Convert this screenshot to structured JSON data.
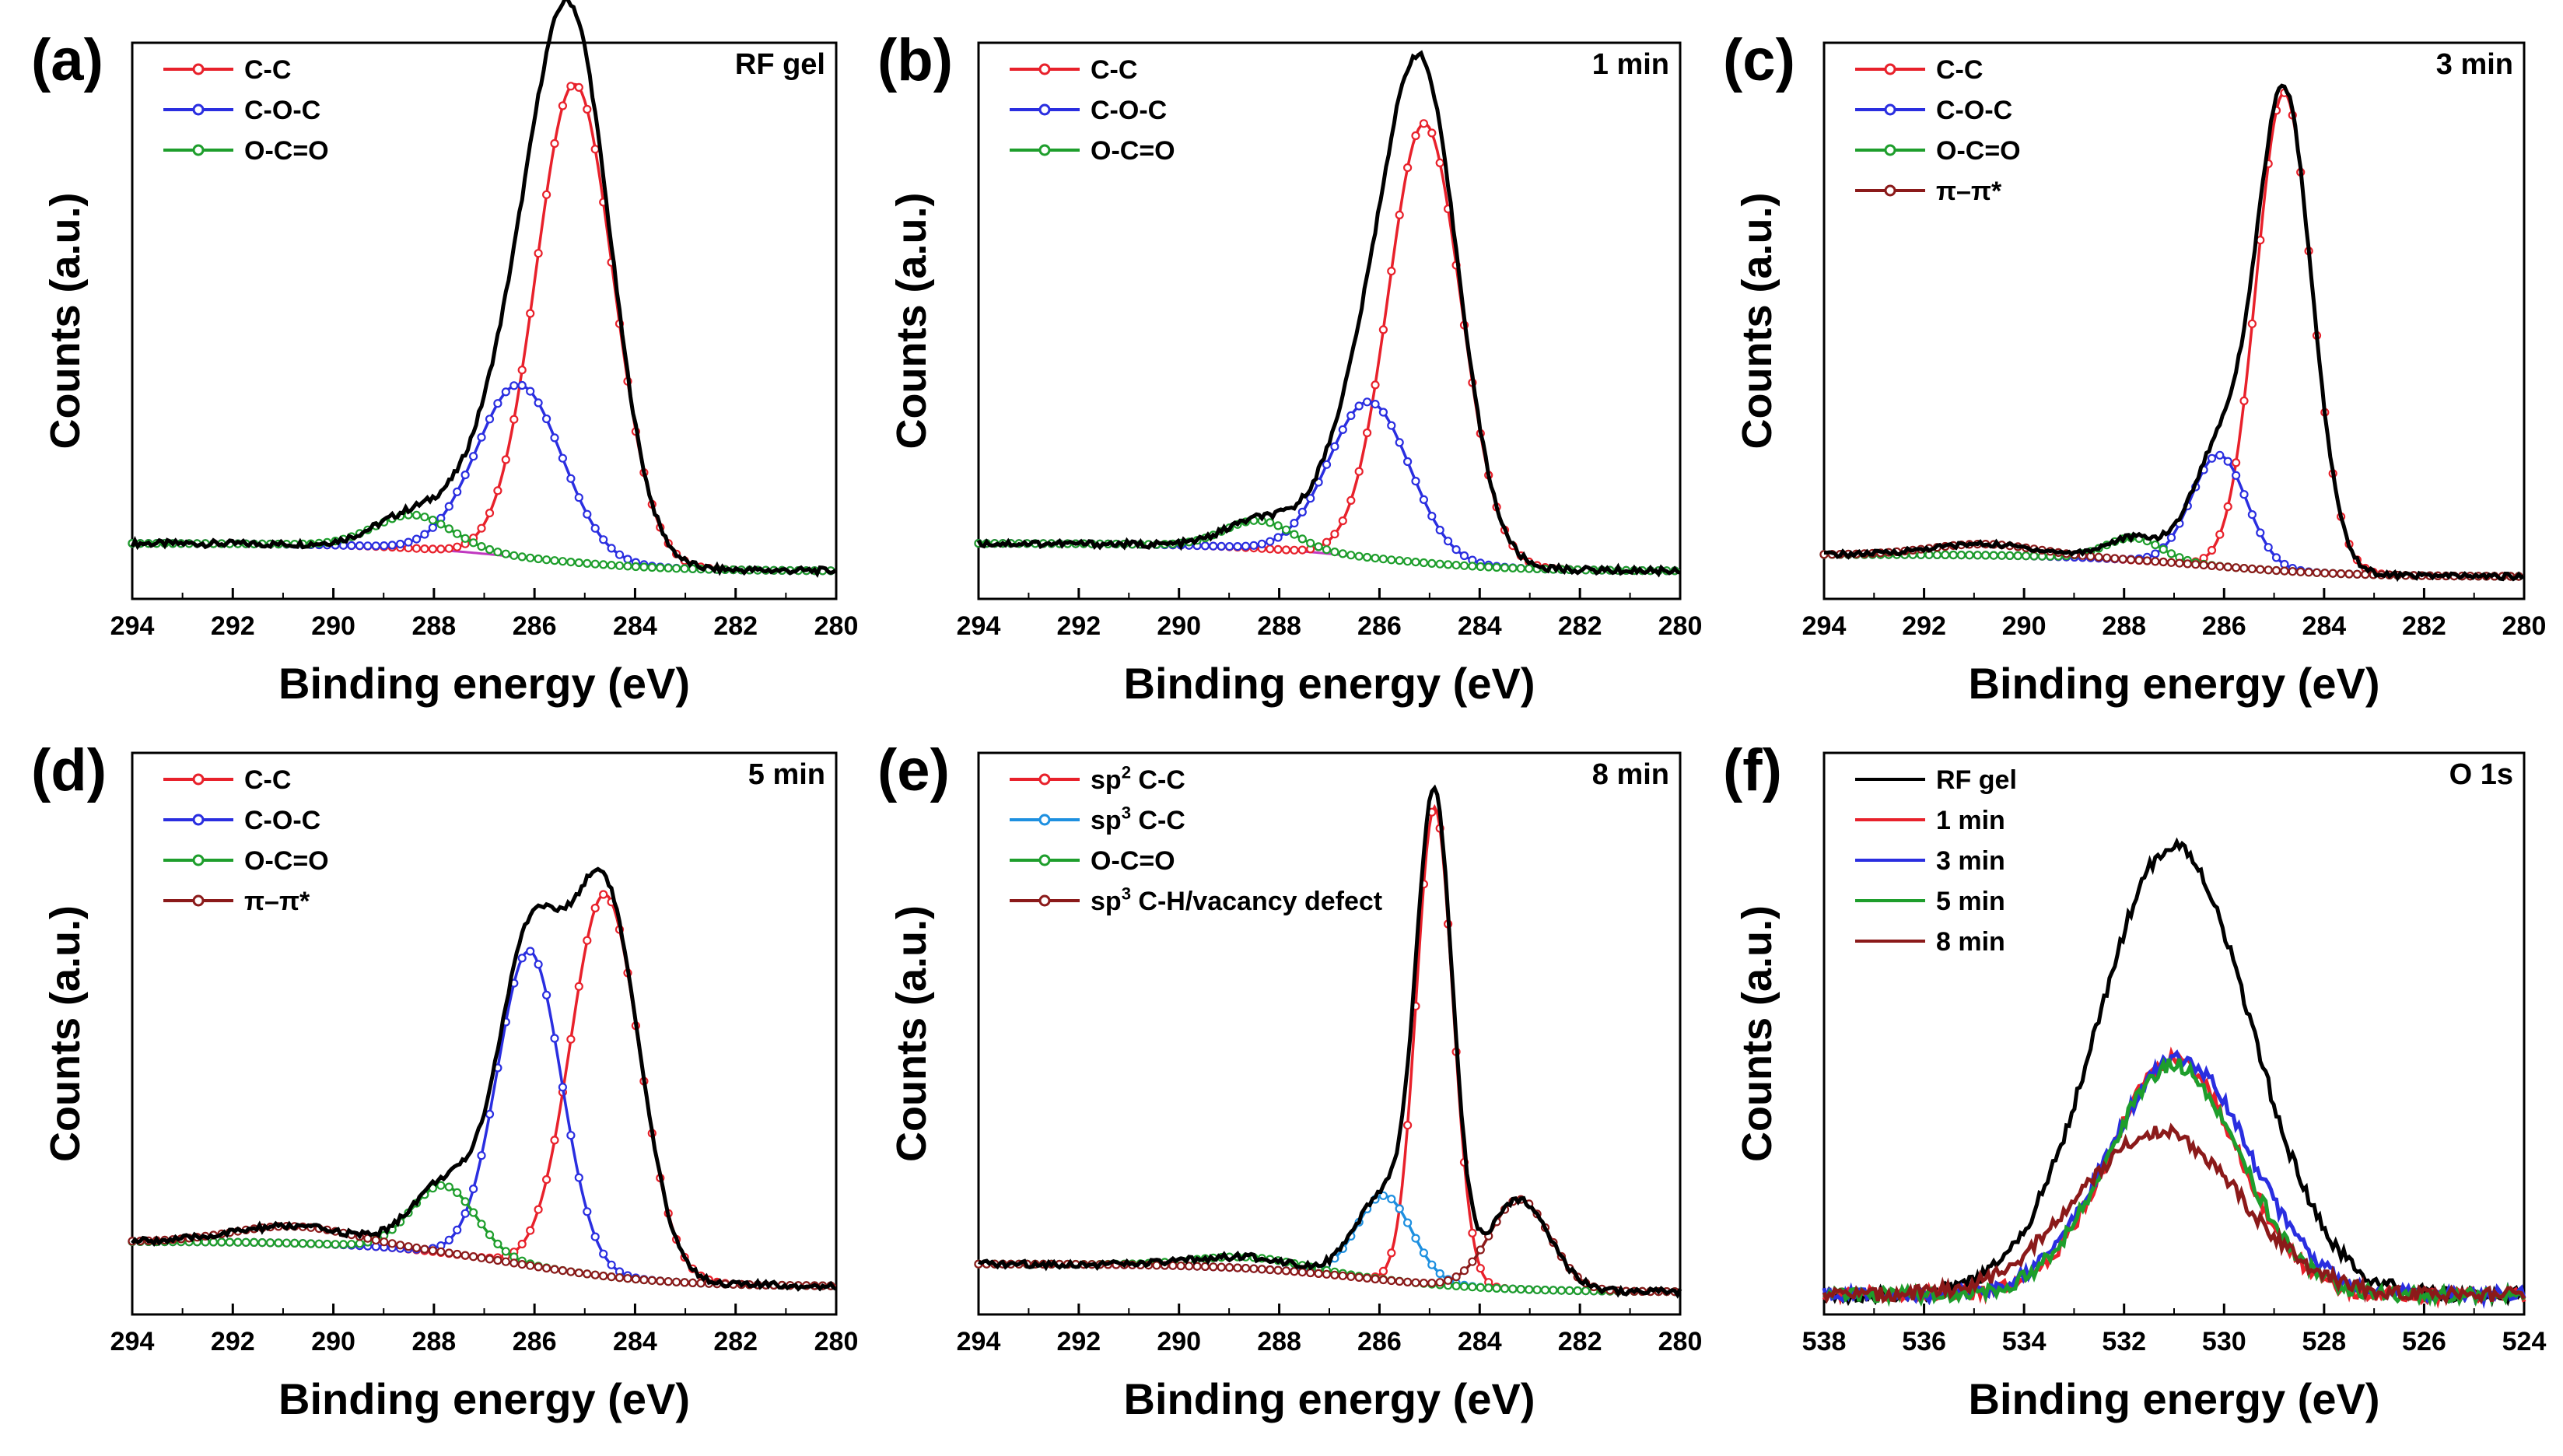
{
  "figure_title": "XPS spectra panels",
  "colors": {
    "envelope": "#000000",
    "cc": "#e8212b",
    "coc": "#2a2ee0",
    "occo": "#1e9e2c",
    "pipi": "#8b1a1a",
    "sp3": "#1e90e0",
    "baseline": "#c038c0"
  },
  "chart_data": [
    {
      "panel": "(a)",
      "type": "line",
      "title": "RF gel",
      "xlabel": "Binding energy (eV)",
      "ylabel": "Counts (a.u.)",
      "xlim": [
        294,
        280
      ],
      "xticks": [
        "294",
        "292",
        "290",
        "288",
        "286",
        "284",
        "282",
        "280"
      ],
      "legend": [
        "C-C",
        "C-O-C",
        "O-C=O"
      ],
      "legend_position": "top-left",
      "baseline": {
        "start": 0.07,
        "end": 0.02
      },
      "envelope_noise": 0.006,
      "series": [
        {
          "name": "C-C",
          "center": 285.2,
          "fwhm": 1.8,
          "height": 0.86,
          "color_key": "cc"
        },
        {
          "name": "C-O-C",
          "center": 286.3,
          "fwhm": 2.0,
          "height": 0.31,
          "color_key": "coc"
        },
        {
          "name": "O-C=O",
          "center": 288.4,
          "fwhm": 1.8,
          "height": 0.06,
          "color_key": "occo"
        }
      ]
    },
    {
      "panel": "(b)",
      "type": "line",
      "title": "1 min",
      "xlabel": "Binding energy (eV)",
      "ylabel": "Counts (a.u.)",
      "xlim": [
        294,
        280
      ],
      "xticks": [
        "294",
        "292",
        "290",
        "288",
        "286",
        "284",
        "282",
        "280"
      ],
      "legend": [
        "C-C",
        "C-O-C",
        "O-C=O"
      ],
      "legend_position": "top-left",
      "baseline": {
        "start": 0.07,
        "end": 0.02
      },
      "envelope_noise": 0.006,
      "series": [
        {
          "name": "C-C",
          "center": 285.1,
          "fwhm": 1.7,
          "height": 0.79,
          "color_key": "cc"
        },
        {
          "name": "C-O-C",
          "center": 286.2,
          "fwhm": 1.9,
          "height": 0.28,
          "color_key": "coc"
        },
        {
          "name": "O-C=O",
          "center": 288.4,
          "fwhm": 1.6,
          "height": 0.05,
          "color_key": "occo"
        }
      ]
    },
    {
      "panel": "(c)",
      "type": "line",
      "title": "3 min",
      "xlabel": "Binding energy (eV)",
      "ylabel": "Counts (a.u.)",
      "xlim": [
        294,
        280
      ],
      "xticks": [
        "294",
        "292",
        "290",
        "288",
        "286",
        "284",
        "282",
        "280"
      ],
      "legend": [
        "C-C",
        "C-O-C",
        "O-C=O",
        "π–π*"
      ],
      "legend_position": "top-left",
      "baseline": {
        "start": 0.05,
        "end": 0.01
      },
      "envelope_noise": 0.005,
      "series": [
        {
          "name": "C-C",
          "center": 284.8,
          "fwhm": 1.3,
          "height": 0.86,
          "color_key": "cc"
        },
        {
          "name": "C-O-C",
          "center": 286.1,
          "fwhm": 1.3,
          "height": 0.2,
          "color_key": "coc"
        },
        {
          "name": "O-C=O",
          "center": 287.8,
          "fwhm": 1.3,
          "height": 0.04,
          "color_key": "occo"
        },
        {
          "name": "π–π*",
          "center": 290.8,
          "fwhm": 2.5,
          "height": 0.02,
          "color_key": "pipi"
        }
      ]
    },
    {
      "panel": "(d)",
      "type": "line",
      "title": "5 min",
      "xlabel": "Binding energy (eV)",
      "ylabel": "Counts (a.u.)",
      "xlim": [
        294,
        280
      ],
      "xticks": [
        "294",
        "292",
        "290",
        "288",
        "286",
        "284",
        "282",
        "280"
      ],
      "legend": [
        "C-C",
        "C-O-C",
        "O-C=O",
        "π–π*"
      ],
      "legend_position": "top-left",
      "baseline": {
        "start": 0.1,
        "end": 0.02
      },
      "envelope_noise": 0.006,
      "series": [
        {
          "name": "C-C",
          "center": 284.6,
          "fwhm": 1.6,
          "height": 0.68,
          "color_key": "cc"
        },
        {
          "name": "C-O-C",
          "center": 286.1,
          "fwhm": 1.5,
          "height": 0.56,
          "color_key": "coc"
        },
        {
          "name": "O-C=O",
          "center": 287.8,
          "fwhm": 1.5,
          "height": 0.12,
          "color_key": "occo"
        },
        {
          "name": "π–π*",
          "center": 290.8,
          "fwhm": 2.8,
          "height": 0.03,
          "color_key": "pipi"
        }
      ]
    },
    {
      "panel": "(e)",
      "type": "line",
      "title": "8 min",
      "xlabel": "Binding energy (eV)",
      "ylabel": "Counts (a.u.)",
      "xlim": [
        294,
        280
      ],
      "xticks": [
        "294",
        "292",
        "290",
        "288",
        "286",
        "284",
        "282",
        "280"
      ],
      "legend": [
        "sp2 C-C",
        "sp3 C-C",
        "O-C=O",
        "sp3 C-H/vacancy defect"
      ],
      "legend_position": "top-left",
      "baseline": {
        "start": 0.06,
        "end": 0.01
      },
      "envelope_noise": 0.006,
      "series": [
        {
          "name": "sp2 C-C",
          "center": 284.9,
          "fwhm": 0.85,
          "height": 0.85,
          "color_key": "cc"
        },
        {
          "name": "sp3 C-C",
          "center": 285.9,
          "fwhm": 1.3,
          "height": 0.15,
          "color_key": "sp3"
        },
        {
          "name": "O-C=O",
          "center": 288.6,
          "fwhm": 2.5,
          "height": 0.02,
          "color_key": "occo"
        },
        {
          "name": "sp3 C-H/vacancy defect",
          "center": 283.2,
          "fwhm": 1.4,
          "height": 0.16,
          "color_key": "pipi"
        }
      ]
    },
    {
      "panel": "(f)",
      "type": "line",
      "title": "O 1s",
      "xlabel": "Binding energy (eV)",
      "ylabel": "Counts (a.u.)",
      "xlim": [
        538,
        524
      ],
      "xticks": [
        "538",
        "536",
        "534",
        "532",
        "530",
        "528",
        "526",
        "524"
      ],
      "legend": [
        "RF gel",
        "1 min",
        "3 min",
        "5 min",
        "8 min"
      ],
      "legend_position": "top-left",
      "baseline": {
        "start": 0.0,
        "end": 0.0
      },
      "series": [
        {
          "name": "RF gel",
          "center": 531.0,
          "fwhm": 3.6,
          "height": 0.8,
          "color_key": "envelope"
        },
        {
          "name": "1 min",
          "center": 531.0,
          "fwhm": 3.0,
          "height": 0.42,
          "color_key": "cc"
        },
        {
          "name": "3 min",
          "center": 530.9,
          "fwhm": 3.3,
          "height": 0.42,
          "color_key": "coc"
        },
        {
          "name": "5 min",
          "center": 531.0,
          "fwhm": 3.1,
          "height": 0.41,
          "color_key": "occo"
        },
        {
          "name": "8 min",
          "center": 531.3,
          "fwhm": 3.8,
          "height": 0.29,
          "color_key": "pipi"
        }
      ]
    }
  ]
}
